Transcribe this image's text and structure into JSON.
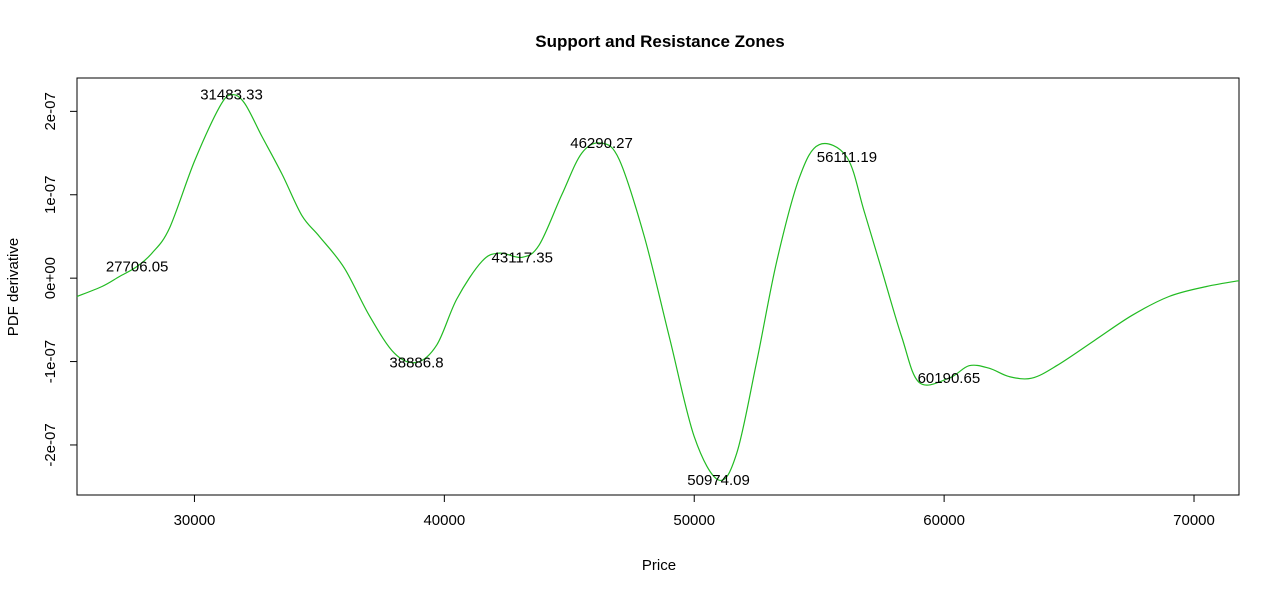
{
  "chart_data": {
    "type": "line",
    "title": "Support and Resistance Zones",
    "xlabel": "Price",
    "ylabel": "PDF derivative",
    "xlim": [
      25300,
      71800
    ],
    "ylim": [
      -2.6e-07,
      2.4e-07
    ],
    "x_ticks": [
      30000,
      40000,
      50000,
      60000,
      70000
    ],
    "x_tick_labels": [
      "30000",
      "40000",
      "50000",
      "60000",
      "70000"
    ],
    "y_ticks": [
      -2e-07,
      -1e-07,
      0,
      1e-07,
      2e-07
    ],
    "y_tick_labels": [
      "-2e-07",
      "-1e-07",
      "0e+00",
      "1e-07",
      "2e-07"
    ],
    "grid": false,
    "series": [
      {
        "color": "#22bb22",
        "x": [
          25300,
          26300,
          27000,
          27700,
          28300,
          29000,
          30000,
          31000,
          31483,
          32000,
          32700,
          33500,
          34300,
          35000,
          36000,
          37000,
          38000,
          38887,
          39700,
          40500,
          41500,
          42200,
          43117,
          43800,
          44700,
          45500,
          46290,
          47000,
          48000,
          49000,
          50000,
          50974,
          51700,
          52500,
          53300,
          54200,
          55000,
          56111,
          56800,
          57500,
          58300,
          59000,
          60190,
          61000,
          61800,
          62600,
          63500,
          64500,
          66000,
          67500,
          69000,
          70500,
          71800
        ],
        "y": [
          -2.2e-08,
          -1e-08,
          2e-09,
          1.4e-08,
          3e-08,
          6e-08,
          1.4e-07,
          2.05e-07,
          2.2e-07,
          2.1e-07,
          1.7e-07,
          1.25e-07,
          7.5e-08,
          5e-08,
          1.2e-08,
          -4.5e-08,
          -9e-08,
          -1.01e-07,
          -8e-08,
          -2.5e-08,
          2e-08,
          3e-08,
          2.5e-08,
          4e-08,
          1e-07,
          1.5e-07,
          1.62e-07,
          1.42e-07,
          5e-08,
          -7e-08,
          -1.9e-07,
          -2.42e-07,
          -2.1e-07,
          -1e-07,
          2e-08,
          1.2e-07,
          1.6e-07,
          1.45e-07,
          8e-08,
          1e-08,
          -7e-08,
          -1.25e-07,
          -1.2e-07,
          -1.05e-07,
          -1.08e-07,
          -1.18e-07,
          -1.2e-07,
          -1.05e-07,
          -7.5e-08,
          -4.5e-08,
          -2.2e-08,
          -1e-08,
          -3e-09
        ]
      }
    ],
    "annotations": [
      {
        "x": 27706.05,
        "y": 1.4e-08,
        "label": "27706.05"
      },
      {
        "x": 31483.33,
        "y": 2.2e-07,
        "label": "31483.33"
      },
      {
        "x": 38886.8,
        "y": -1.01e-07,
        "label": "38886.8"
      },
      {
        "x": 43117.35,
        "y": 2.5e-08,
        "label": "43117.35"
      },
      {
        "x": 46290.27,
        "y": 1.62e-07,
        "label": "46290.27"
      },
      {
        "x": 50974.09,
        "y": -2.42e-07,
        "label": "50974.09"
      },
      {
        "x": 56111.19,
        "y": 1.45e-07,
        "label": "56111.19"
      },
      {
        "x": 60190.65,
        "y": -1.2e-07,
        "label": "60190.65"
      }
    ]
  }
}
